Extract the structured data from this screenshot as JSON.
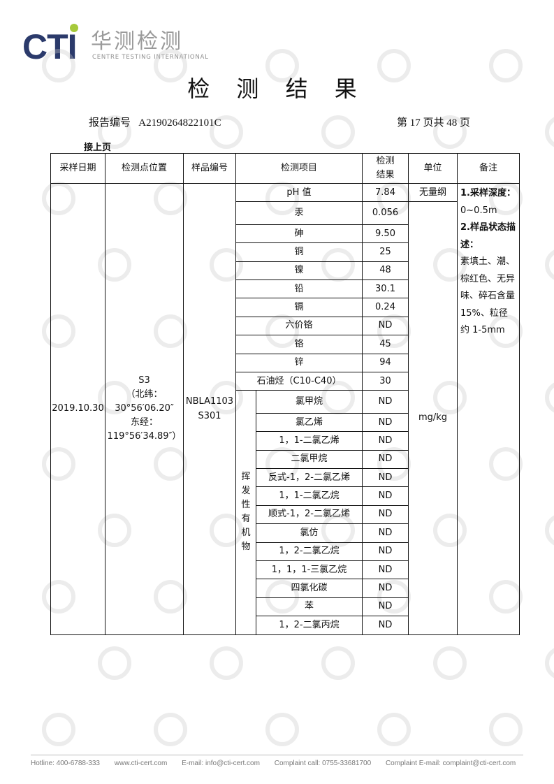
{
  "logo": {
    "mark": "CTI",
    "cn": "华测检测",
    "en": "CENTRE TESTING INTERNATIONAL",
    "accent": "#a6c93b",
    "brand": "#2b3a6b"
  },
  "title": "检 测 结 果",
  "report": {
    "label": "报告编号",
    "number": "A2190264822101C",
    "page": "第 17 页共 48 页"
  },
  "continued": "接上页",
  "table": {
    "headers": [
      "采样日期",
      "检测点位置",
      "样品编号",
      "检测项目",
      "检测\n结果",
      "单位",
      "备注"
    ],
    "date": "2019.10.30",
    "location": [
      "S3",
      "（北纬：",
      "30°56′06.20″",
      "东经：",
      "119°56′34.89″）"
    ],
    "sample_no": [
      "NBLA1103",
      "S301"
    ],
    "units": [
      "无量纲",
      "mg/kg"
    ],
    "group_label": "挥发性有机物",
    "items": [
      {
        "name": "pH 值",
        "result": "7.84"
      },
      {
        "name": "汞",
        "result": "0.056"
      },
      {
        "name": "砷",
        "result": "9.50"
      },
      {
        "name": "铜",
        "result": "25"
      },
      {
        "name": "镍",
        "result": "48"
      },
      {
        "name": "铅",
        "result": "30.1"
      },
      {
        "name": "镉",
        "result": "0.24"
      },
      {
        "name": "六价铬",
        "result": "ND"
      },
      {
        "name": "铬",
        "result": "45"
      },
      {
        "name": "锌",
        "result": "94"
      },
      {
        "name": "石油烃（C10-C40）",
        "result": "30"
      }
    ],
    "voc_items": [
      {
        "name": "氯甲烷",
        "result": "ND"
      },
      {
        "name": "氯乙烯",
        "result": "ND"
      },
      {
        "name": "1，1-二氯乙烯",
        "result": "ND"
      },
      {
        "name": "二氯甲烷",
        "result": "ND"
      },
      {
        "name": "反式-1，2-二氯乙烯",
        "result": "ND"
      },
      {
        "name": "1，1-二氯乙烷",
        "result": "ND"
      },
      {
        "name": "顺式-1，2-二氯乙烯",
        "result": "ND"
      },
      {
        "name": "氯仿",
        "result": "ND"
      },
      {
        "name": "1，2-二氯乙烷",
        "result": "ND"
      },
      {
        "name": "1，1，1-三氯乙烷",
        "result": "ND"
      },
      {
        "name": "四氯化碳",
        "result": "ND"
      },
      {
        "name": "苯",
        "result": "ND"
      },
      {
        "name": "1，2-二氯丙烷",
        "result": "ND"
      }
    ],
    "remarks": {
      "depth_label": "1.采样深度：",
      "depth": "0~0.5m",
      "state_label": "2.样品状态描述：",
      "state": "素填土、潮、棕红色、无异味、碎石含量 15%、粒径约 1-5mm"
    }
  },
  "footer": {
    "hotline": "Hotline: 400-6788-333",
    "web": "www.cti-cert.com",
    "email": "E-mail: info@cti-cert.com",
    "complaint_call": "Complaint call: 0755-33681700",
    "complaint_email": "Complaint E-mail: complaint@cti-cert.com"
  }
}
